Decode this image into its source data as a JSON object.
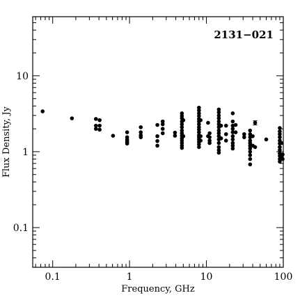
{
  "chart_data": {
    "type": "scatter",
    "title": "",
    "annotation": "2131−021",
    "xlabel": "Frequency, GHz",
    "ylabel": "Flux Density, Jy",
    "xscale": "log",
    "yscale": "log",
    "xlim": [
      0.055,
      100
    ],
    "ylim": [
      0.03,
      60
    ],
    "x_ticks": [
      0.1,
      1,
      10,
      100
    ],
    "x_tick_labels": [
      "0.1",
      "1",
      "10",
      "100"
    ],
    "y_ticks": [
      0.1,
      1,
      10
    ],
    "y_tick_labels": [
      "0.1",
      "1",
      "10"
    ],
    "grid": false,
    "color": "#000000",
    "points": [
      [
        0.074,
        3.4
      ],
      [
        0.178,
        2.75
      ],
      [
        0.365,
        2.7
      ],
      [
        0.365,
        2.2
      ],
      [
        0.365,
        2.0
      ],
      [
        0.408,
        2.6
      ],
      [
        0.408,
        2.2
      ],
      [
        0.408,
        1.95
      ],
      [
        0.61,
        1.62
      ],
      [
        0.93,
        1.8
      ],
      [
        0.93,
        1.55
      ],
      [
        0.93,
        1.45
      ],
      [
        0.93,
        1.38
      ],
      [
        0.93,
        1.32
      ],
      [
        0.93,
        1.28
      ],
      [
        1.4,
        2.1
      ],
      [
        1.4,
        1.8
      ],
      [
        1.4,
        1.65
      ],
      [
        1.4,
        1.55
      ],
      [
        2.3,
        2.25
      ],
      [
        2.3,
        1.6
      ],
      [
        2.3,
        1.38
      ],
      [
        2.3,
        1.2
      ],
      [
        2.7,
        2.5
      ],
      [
        2.7,
        2.3
      ],
      [
        2.7,
        2.0
      ],
      [
        2.7,
        1.75
      ],
      [
        3.9,
        1.78
      ],
      [
        3.9,
        1.62
      ],
      [
        4.8,
        3.2
      ],
      [
        4.8,
        2.95
      ],
      [
        4.8,
        2.75
      ],
      [
        4.8,
        2.5
      ],
      [
        4.8,
        2.3
      ],
      [
        4.8,
        2.1
      ],
      [
        4.8,
        1.9
      ],
      [
        4.8,
        1.75
      ],
      [
        4.8,
        1.62
      ],
      [
        4.8,
        1.5
      ],
      [
        4.8,
        1.4
      ],
      [
        4.8,
        1.3
      ],
      [
        4.8,
        1.2
      ],
      [
        4.8,
        1.12
      ],
      [
        5.0,
        2.6
      ],
      [
        5.0,
        1.6
      ],
      [
        8.0,
        3.8
      ],
      [
        8.0,
        3.5
      ],
      [
        8.0,
        3.2
      ],
      [
        8.0,
        2.95
      ],
      [
        8.0,
        2.7
      ],
      [
        8.0,
        2.5
      ],
      [
        8.0,
        2.3
      ],
      [
        8.0,
        2.1
      ],
      [
        8.0,
        1.95
      ],
      [
        8.0,
        1.8
      ],
      [
        8.0,
        1.65
      ],
      [
        8.0,
        1.55
      ],
      [
        8.0,
        1.45
      ],
      [
        8.0,
        1.35
      ],
      [
        8.0,
        1.25
      ],
      [
        8.0,
        1.15
      ],
      [
        8.4,
        2.6
      ],
      [
        8.4,
        1.6
      ],
      [
        8.4,
        1.4
      ],
      [
        10.5,
        2.4
      ],
      [
        10.5,
        1.6
      ],
      [
        11.0,
        1.75
      ],
      [
        11.0,
        1.55
      ],
      [
        11.0,
        1.4
      ],
      [
        11.0,
        1.3
      ],
      [
        14.5,
        3.6
      ],
      [
        14.5,
        3.3
      ],
      [
        14.5,
        3.0
      ],
      [
        14.5,
        2.75
      ],
      [
        14.5,
        2.5
      ],
      [
        14.5,
        2.3
      ],
      [
        14.5,
        2.1
      ],
      [
        14.5,
        1.9
      ],
      [
        14.5,
        1.75
      ],
      [
        14.5,
        1.6
      ],
      [
        14.5,
        1.45
      ],
      [
        14.5,
        1.3
      ],
      [
        14.5,
        1.15
      ],
      [
        14.5,
        1.05
      ],
      [
        14.5,
        0.97
      ],
      [
        15.5,
        2.2
      ],
      [
        15.5,
        1.5
      ],
      [
        18.0,
        2.2
      ],
      [
        18.0,
        1.7
      ],
      [
        18.0,
        1.4
      ],
      [
        22.0,
        3.2
      ],
      [
        22.0,
        2.5
      ],
      [
        22.0,
        2.2
      ],
      [
        22.0,
        2.0
      ],
      [
        22.0,
        1.8
      ],
      [
        22.0,
        1.6
      ],
      [
        22.0,
        1.45
      ],
      [
        22.0,
        1.3
      ],
      [
        22.0,
        1.2
      ],
      [
        22.0,
        1.1
      ],
      [
        24.0,
        2.25
      ],
      [
        24.0,
        1.8
      ],
      [
        31.0,
        1.7
      ],
      [
        31.0,
        1.55
      ],
      [
        37.0,
        1.9
      ],
      [
        37.0,
        1.7
      ],
      [
        37.0,
        1.55
      ],
      [
        37.0,
        1.4
      ],
      [
        37.0,
        1.3
      ],
      [
        37.0,
        1.2
      ],
      [
        37.0,
        1.1
      ],
      [
        37.0,
        1.0
      ],
      [
        37.0,
        0.9
      ],
      [
        37.0,
        0.8
      ],
      [
        37.0,
        0.68
      ],
      [
        40.0,
        1.6
      ],
      [
        40.0,
        1.2
      ],
      [
        43.0,
        2.4
      ],
      [
        43.0,
        1.15
      ],
      [
        60.0,
        1.45
      ],
      [
        90.0,
        2.05
      ],
      [
        90.0,
        1.85
      ],
      [
        90.0,
        1.7
      ],
      [
        90.0,
        1.55
      ],
      [
        90.0,
        1.4
      ],
      [
        90.0,
        1.28
      ],
      [
        90.0,
        1.15
      ],
      [
        90.0,
        1.05
      ],
      [
        90.0,
        0.95
      ],
      [
        90.0,
        0.88
      ],
      [
        90.0,
        0.8
      ],
      [
        90.0,
        0.74
      ],
      [
        95.0,
        1.3
      ],
      [
        95.0,
        0.86
      ],
      [
        98.0,
        0.92
      ],
      [
        98.0,
        0.8
      ]
    ],
    "error_bars": [
      {
        "x": 43.0,
        "y": 2.4,
        "yerr": 0.15
      },
      {
        "x": 90.0,
        "y": 1.05,
        "yerr": 0.1
      }
    ]
  }
}
